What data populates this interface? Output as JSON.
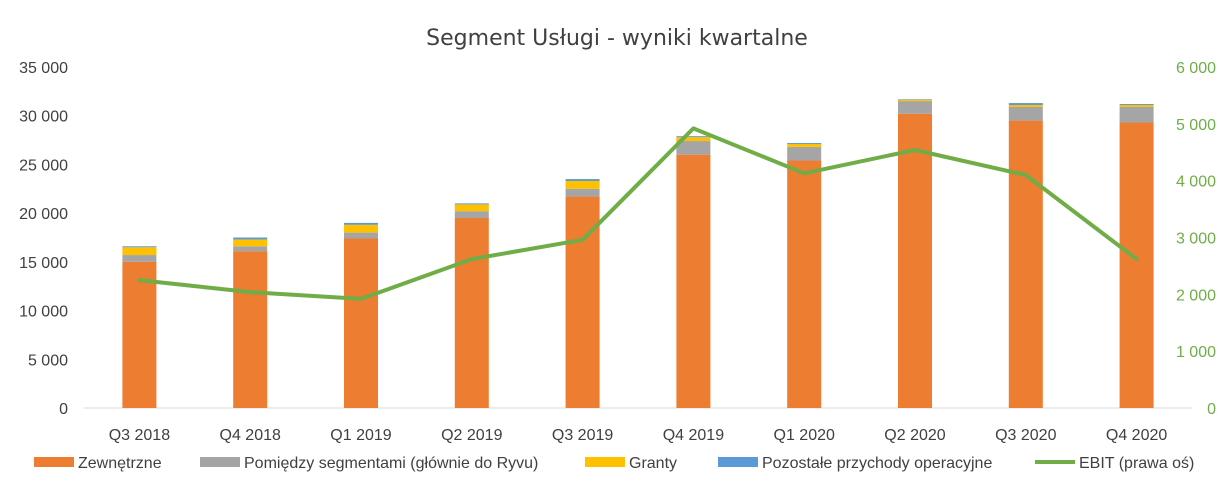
{
  "chart_data": {
    "type": "bar",
    "stacked": true,
    "title": "Segment Usługi - wyniki kwartalne",
    "categories": [
      "Q3 2018",
      "Q4 2018",
      "Q1 2019",
      "Q2 2019",
      "Q3 2019",
      "Q4 2019",
      "Q1 2020",
      "Q2 2020",
      "Q3 2020",
      "Q4 2020"
    ],
    "ylim": [
      0,
      35000
    ],
    "yticks": [
      "0",
      "5 000",
      "10 000",
      "15 000",
      "20 000",
      "25 000",
      "30 000",
      "35 000"
    ],
    "y2lim": [
      0,
      6000
    ],
    "y2ticks": [
      "0",
      "1 000",
      "2 000",
      "3 000",
      "4 000",
      "5 000",
      "6 000"
    ],
    "series": [
      {
        "name": "Zewnętrzne",
        "color": "#ed7d31",
        "axis": "left",
        "values": [
          15000,
          16100,
          17400,
          19500,
          21700,
          26000,
          25400,
          30200,
          29500,
          29300
        ]
      },
      {
        "name": "Pomiędzy segmentami (głównie do Ryvu)",
        "color": "#a5a5a5",
        "axis": "left",
        "values": [
          700,
          500,
          600,
          700,
          800,
          1400,
          1400,
          1300,
          1400,
          1600
        ]
      },
      {
        "name": "Granty",
        "color": "#ffc000",
        "axis": "left",
        "values": [
          800,
          700,
          800,
          700,
          800,
          400,
          300,
          150,
          200,
          200
        ]
      },
      {
        "name": "Pozostałe przychody operacyjne",
        "color": "#5b9bd5",
        "axis": "left",
        "values": [
          100,
          200,
          200,
          100,
          200,
          100,
          100,
          50,
          200,
          100
        ]
      }
    ],
    "line_series": {
      "name": "EBIT (prawa oś)",
      "color": "#70ad47",
      "axis": "right",
      "values": [
        2250,
        2040,
        1920,
        2620,
        2960,
        4920,
        4130,
        4540,
        4100,
        2620
      ]
    },
    "legend_position": "bottom",
    "grid": false
  }
}
